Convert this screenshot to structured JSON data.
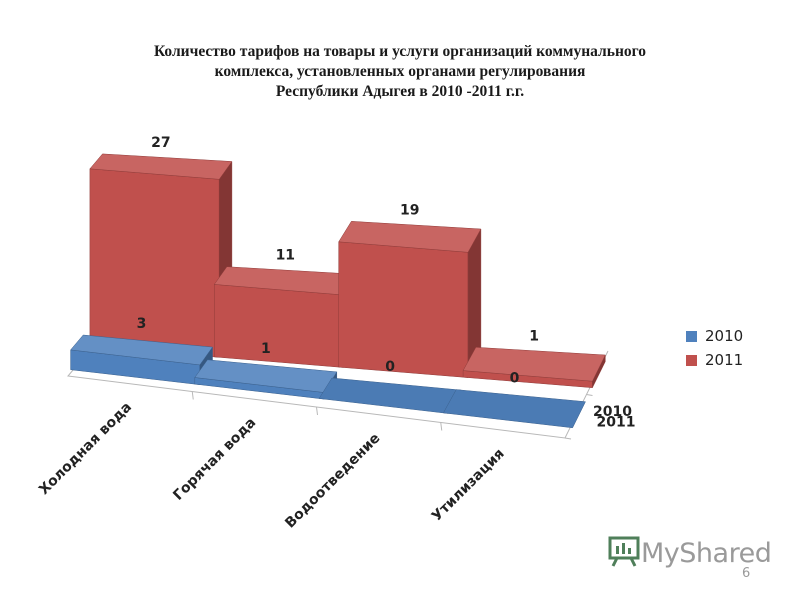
{
  "chart_data": {
    "type": "bar",
    "title_lines": [
      "Количество тарифов на товары и услуги организаций коммунального",
      "комплекса, установленных органами регулирования",
      "Республики Адыгея в 2010 -2011 г.г."
    ],
    "categories": [
      "Холодная вода",
      "Горячая вода",
      "Водоотведение",
      "Утилизация"
    ],
    "depth_labels": [
      "2011",
      "2010"
    ],
    "series": [
      {
        "name": "2010",
        "values": [
          3,
          1,
          0,
          0
        ],
        "color": "#4f81bd"
      },
      {
        "name": "2011",
        "values": [
          27,
          11,
          19,
          1
        ],
        "color": "#c0504d"
      }
    ],
    "ylim": [
      0,
      27
    ],
    "legend_position": "right",
    "grid": false
  },
  "legend": {
    "items": [
      {
        "label": "2010",
        "color": "#4f81bd"
      },
      {
        "label": "2011",
        "color": "#c0504d"
      }
    ]
  },
  "watermark": {
    "text": "MyShared",
    "icon": "presentation-board-icon"
  },
  "page_number": "6"
}
